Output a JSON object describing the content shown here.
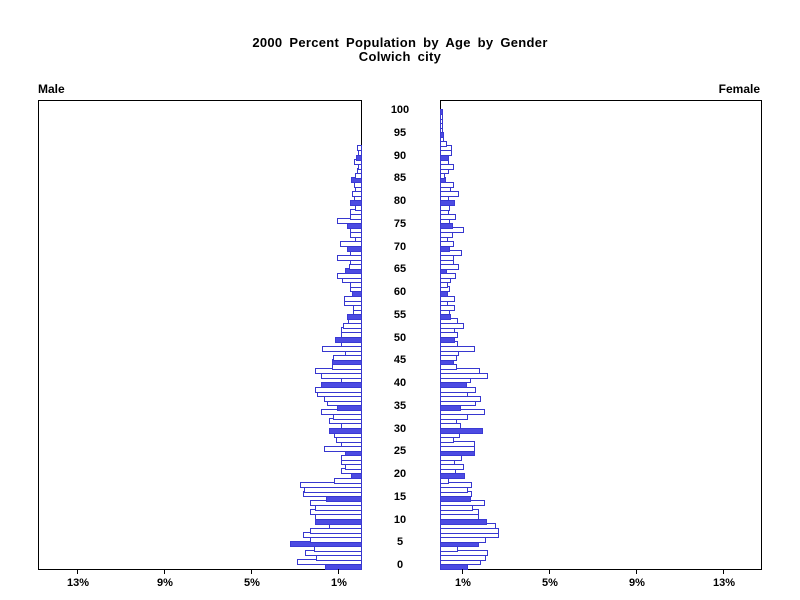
{
  "title": {
    "line1": "2000 Percent Population by Age by Gender",
    "line2": "Colwich city"
  },
  "panels": {
    "left_header": "Male",
    "right_header": "Female"
  },
  "colors": {
    "bar_solid_fill": "#4c4be2",
    "bar_outline": "#3737cf",
    "bar_open_fill": "#ffffff",
    "frame": "#000000",
    "text": "#000000"
  },
  "chart_data": {
    "type": "bar",
    "subtype": "population_pyramid",
    "title": "2000 Percent Population by Age by Gender",
    "subtitle": "Colwich city",
    "unit": "percent",
    "age_min": 0,
    "age_max": 100,
    "age_bin_years": 1,
    "age_tick_step": 5,
    "age_tick_labels": [
      "0",
      "5",
      "10",
      "15",
      "20",
      "25",
      "30",
      "35",
      "40",
      "45",
      "50",
      "55",
      "60",
      "65",
      "70",
      "75",
      "80",
      "85",
      "90",
      "95",
      "100"
    ],
    "x_ticks_percent": [
      1,
      5,
      9,
      13
    ],
    "x_tick_labels": [
      "1%",
      "5%",
      "9%",
      "13%"
    ],
    "x_max_percent": 14.8,
    "solid_bar_every_years": 5,
    "series": [
      {
        "name": "Male",
        "side": "left",
        "values": [
          1.7,
          3.0,
          2.1,
          2.6,
          2.2,
          3.3,
          2.4,
          2.7,
          2.4,
          1.5,
          2.15,
          2.15,
          2.4,
          2.15,
          2.4,
          1.67,
          2.7,
          2.65,
          2.86,
          1.27,
          0.51,
          0.98,
          0.76,
          0.98,
          0.98,
          0.79,
          1.75,
          0.95,
          1.19,
          1.27,
          1.54,
          0.98,
          1.51,
          1.35,
          1.87,
          1.14,
          1.59,
          1.75,
          2.06,
          2.14,
          1.9,
          0.98,
          1.9,
          2.17,
          1.38,
          1.38,
          1.35,
          0.79,
          1.83,
          0.98,
          1.22,
          0.98,
          0.98,
          0.87,
          0.63,
          0.71,
          0.4,
          0.4,
          0.83,
          0.83,
          0.48,
          0.55,
          0.55,
          0.9,
          1.15,
          0.79,
          0.6,
          0.55,
          1.14,
          0.55,
          0.71,
          1.03,
          0.3,
          0.55,
          0.55,
          0.71,
          1.14,
          0.55,
          0.55,
          0.3,
          0.56,
          0.35,
          0.45,
          0.3,
          0.35,
          0.51,
          0.3,
          0.25,
          0.2,
          0.35,
          0.27,
          0.2,
          0.25,
          0,
          0,
          0,
          0,
          0,
          0,
          0,
          0
        ]
      },
      {
        "name": "Female",
        "side": "right",
        "values": [
          1.3,
          1.9,
          2.11,
          2.22,
          0.84,
          1.79,
          2.11,
          2.71,
          2.71,
          2.59,
          2.14,
          1.79,
          1.79,
          1.51,
          2.06,
          1.43,
          1.48,
          1.27,
          1.48,
          0.4,
          1.16,
          0.75,
          1.11,
          0.68,
          1.03,
          1.63,
          1.63,
          1.63,
          0.63,
          0.9,
          1.98,
          0.95,
          0.79,
          1.27,
          2.06,
          0.95,
          1.67,
          1.9,
          1.27,
          1.67,
          1.22,
          1.43,
          2.22,
          1.83,
          0.79,
          0.63,
          0.79,
          0.87,
          1.63,
          0.84,
          0.68,
          0.84,
          0.71,
          1.11,
          0.84,
          0.52,
          0.48,
          0.71,
          0.37,
          0.71,
          0.37,
          0.48,
          0.37,
          0.52,
          0.75,
          0.32,
          0.87,
          0.63,
          0.63,
          1.03,
          0.48,
          0.63,
          0.37,
          0.59,
          1.11,
          0.59,
          0.48,
          0.75,
          0.4,
          0.48,
          0.68,
          0.4,
          0.87,
          0.52,
          0.63,
          0.27,
          0.21,
          0.4,
          0.63,
          0.4,
          0.43,
          0.55,
          0.55,
          0.3,
          0.2,
          0.2,
          0.15,
          0.15,
          0.15,
          0.15,
          0.16
        ]
      }
    ]
  }
}
